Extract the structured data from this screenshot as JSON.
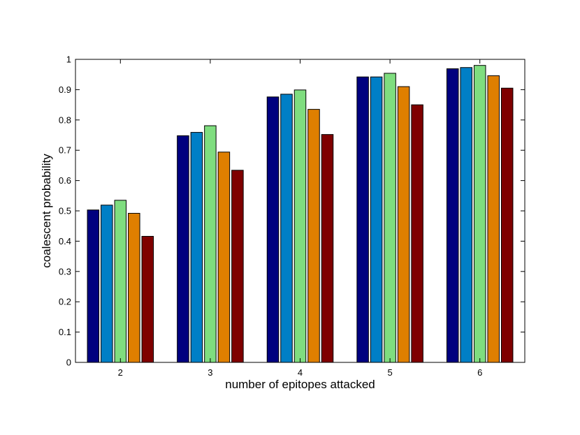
{
  "chart_data": {
    "type": "bar",
    "title": "",
    "xlabel": "number of epitopes attacked",
    "ylabel": "coalescent probability",
    "categories": [
      "2",
      "3",
      "4",
      "5",
      "6"
    ],
    "ylim": [
      0,
      1
    ],
    "yticks": [
      "0",
      "0.1",
      "0.2",
      "0.3",
      "0.4",
      "0.5",
      "0.6",
      "0.7",
      "0.8",
      "0.9",
      "1"
    ],
    "grid": false,
    "legend": "none",
    "series": [
      {
        "color": "#00007f",
        "values": [
          0.503,
          0.748,
          0.876,
          0.942,
          0.969
        ]
      },
      {
        "color": "#007fc6",
        "values": [
          0.519,
          0.759,
          0.885,
          0.942,
          0.973
        ]
      },
      {
        "color": "#7fdd7f",
        "values": [
          0.535,
          0.781,
          0.899,
          0.954,
          0.98
        ]
      },
      {
        "color": "#df7f00",
        "values": [
          0.492,
          0.694,
          0.835,
          0.91,
          0.946
        ]
      },
      {
        "color": "#7f0000",
        "values": [
          0.416,
          0.634,
          0.752,
          0.85,
          0.905
        ]
      }
    ]
  }
}
